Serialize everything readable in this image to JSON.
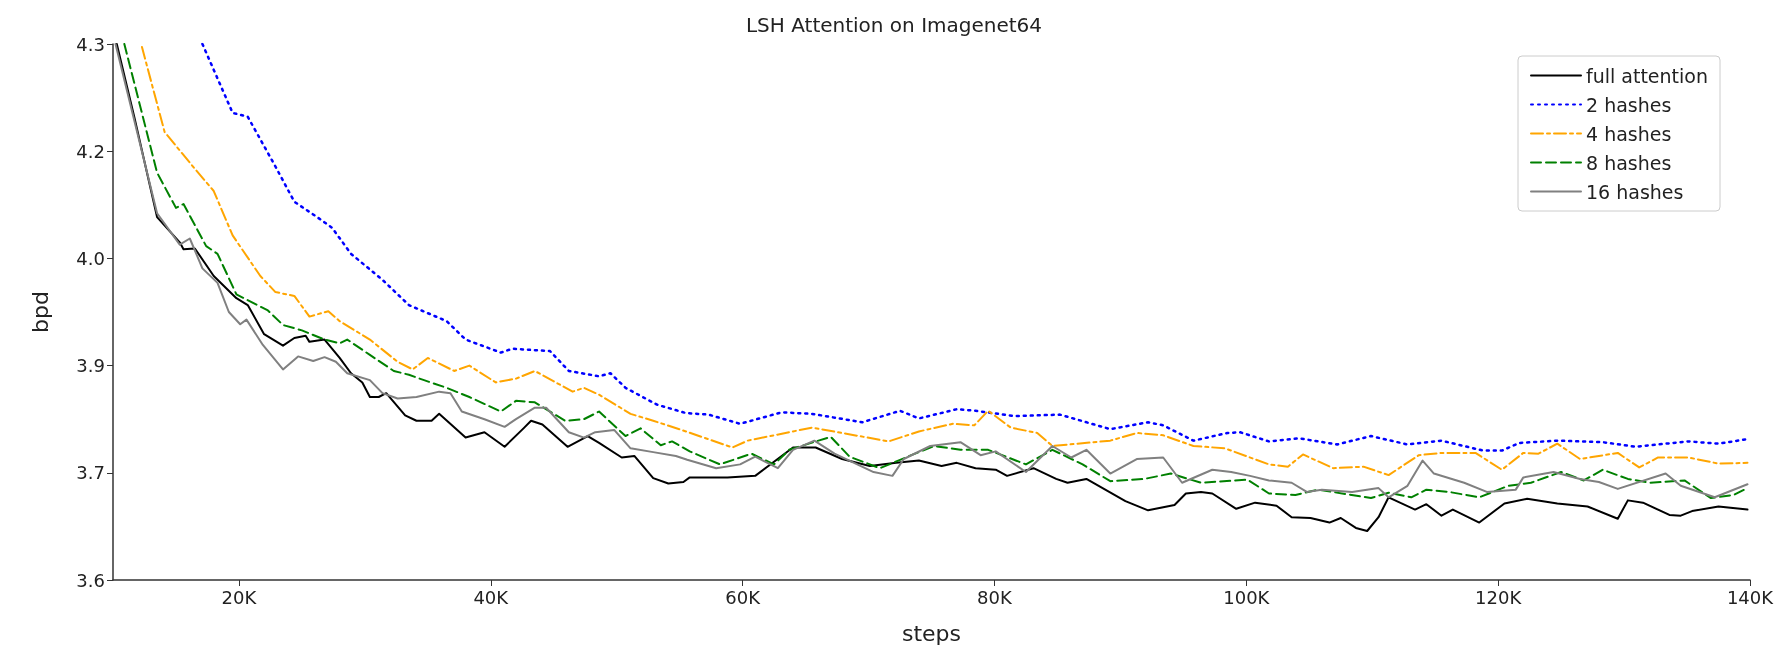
{
  "chart_data": {
    "type": "line",
    "title": "LSH Attention on Imagenet64",
    "xlabel": "steps",
    "ylabel": "bpd",
    "xlim": [
      10000,
      140000
    ],
    "xticks": [
      {
        "value": 20000,
        "label": "20K"
      },
      {
        "value": 40000,
        "label": "40K"
      },
      {
        "value": 60000,
        "label": "60K"
      },
      {
        "value": 80000,
        "label": "80K"
      },
      {
        "value": 100000,
        "label": "100K"
      },
      {
        "value": 120000,
        "label": "120K"
      },
      {
        "value": 140000,
        "label": "140K"
      }
    ],
    "ylim": [
      3.6,
      4.3
    ],
    "yticks": [
      3.6,
      {
        "value": 3.74,
        "label": "3.7"
      },
      {
        "value": 3.88,
        "label": "3.9"
      },
      {
        "value": 4.02,
        "label": "4.0"
      },
      {
        "value": 4.16,
        "label": "4.2"
      },
      4.3
    ],
    "grid": false,
    "legend": "top right",
    "marker": "none",
    "series": [
      {
        "name": "full attention",
        "color": "#000000",
        "line_style": "solid",
        "x": [
          10300,
          11700,
          13500,
          15300,
          15600,
          16500,
          18000,
          19800,
          20700,
          22000,
          23500,
          24400,
          25300,
          25600,
          26800,
          28000,
          28900,
          29800,
          30400,
          31100,
          31700,
          33200,
          34100,
          35300,
          35900,
          38000,
          39500,
          41100,
          42600,
          43200,
          44100,
          46100,
          47700,
          48600,
          50400,
          51400,
          52900,
          54100,
          55300,
          55800,
          58800,
          61000,
          64000,
          65800,
          67900,
          70100,
          72200,
          74000,
          75800,
          77000,
          78500,
          80100,
          81000,
          83100,
          84900,
          85800,
          87300,
          90400,
          92200,
          94300,
          95200,
          96400,
          97300,
          99200,
          100700,
          102400,
          103600,
          105100,
          106600,
          107500,
          108700,
          109600,
          110500,
          111300,
          113400,
          114300,
          115500,
          116400,
          118500,
          120500,
          122300,
          124700,
          127100,
          129500,
          130300,
          131500,
          133600,
          134500,
          135400,
          137500,
          139800
        ],
        "values": [
          4.3,
          4.204,
          4.074,
          4.041,
          4.032,
          4.033,
          3.997,
          3.968,
          3.959,
          3.921,
          3.906,
          3.916,
          3.919,
          3.911,
          3.914,
          3.89,
          3.87,
          3.858,
          3.839,
          3.839,
          3.844,
          3.815,
          3.808,
          3.808,
          3.817,
          3.786,
          3.793,
          3.774,
          3.798,
          3.808,
          3.803,
          3.774,
          3.788,
          3.779,
          3.76,
          3.762,
          3.733,
          3.726,
          3.728,
          3.734,
          3.734,
          3.736,
          3.773,
          3.773,
          3.758,
          3.749,
          3.753,
          3.756,
          3.749,
          3.753,
          3.746,
          3.744,
          3.736,
          3.746,
          3.732,
          3.727,
          3.732,
          3.703,
          3.691,
          3.698,
          3.713,
          3.715,
          3.713,
          3.693,
          3.701,
          3.697,
          3.682,
          3.681,
          3.675,
          3.681,
          3.668,
          3.664,
          3.682,
          3.708,
          3.692,
          3.699,
          3.684,
          3.692,
          3.675,
          3.7,
          3.706,
          3.7,
          3.696,
          3.68,
          3.704,
          3.701,
          3.685,
          3.684,
          3.69,
          3.696,
          3.692
        ]
      },
      {
        "name": "2 hashes",
        "color": "#0000ff",
        "line_style": "dotted",
        "x": [
          17100,
          19500,
          20700,
          22900,
          24400,
          26200,
          27400,
          28900,
          31400,
          33500,
          36500,
          38000,
          40800,
          41700,
          44700,
          46200,
          48600,
          49500,
          50700,
          53200,
          55500,
          57300,
          59800,
          63100,
          65500,
          69500,
          72500,
          74000,
          77000,
          78500,
          81600,
          85200,
          89200,
          92200,
          93400,
          95800,
          98500,
          99500,
          101800,
          104200,
          107200,
          109900,
          112800,
          115500,
          118800,
          120300,
          121700,
          124700,
          128300,
          130900,
          135100,
          137500,
          139800
        ],
        "values": [
          4.3,
          4.21,
          4.205,
          4.14,
          4.094,
          4.074,
          4.06,
          4.026,
          3.992,
          3.959,
          3.938,
          3.914,
          3.897,
          3.902,
          3.899,
          3.873,
          3.866,
          3.87,
          3.851,
          3.829,
          3.818,
          3.816,
          3.804,
          3.819,
          3.817,
          3.806,
          3.821,
          3.811,
          3.823,
          3.821,
          3.814,
          3.816,
          3.797,
          3.806,
          3.802,
          3.782,
          3.792,
          3.793,
          3.781,
          3.785,
          3.777,
          3.788,
          3.777,
          3.782,
          3.769,
          3.769,
          3.779,
          3.782,
          3.78,
          3.774,
          3.781,
          3.778,
          3.784
        ]
      },
      {
        "name": "4 hashes",
        "color": "#ffa500",
        "line_style": "dashdot",
        "x": [
          12300,
          14100,
          16500,
          18000,
          19500,
          21700,
          22900,
          24400,
          25600,
          27100,
          28000,
          30400,
          32600,
          33800,
          35000,
          37100,
          38300,
          40400,
          42000,
          43500,
          46500,
          47400,
          48600,
          51100,
          52900,
          55500,
          59200,
          60400,
          65500,
          67900,
          71600,
          74000,
          76700,
          78400,
          79500,
          81300,
          83400,
          84600,
          89200,
          91300,
          93400,
          95800,
          98300,
          101800,
          103300,
          104500,
          106900,
          109300,
          111300,
          113700,
          115500,
          118200,
          120300,
          122000,
          123200,
          124700,
          126500,
          129500,
          131200,
          132700,
          135100,
          137500,
          139800
        ],
        "values": [
          4.296,
          4.185,
          4.137,
          4.108,
          4.05,
          3.997,
          3.976,
          3.971,
          3.944,
          3.951,
          3.938,
          3.914,
          3.885,
          3.875,
          3.89,
          3.873,
          3.88,
          3.858,
          3.863,
          3.873,
          3.846,
          3.851,
          3.842,
          3.817,
          3.808,
          3.794,
          3.773,
          3.782,
          3.799,
          3.792,
          3.781,
          3.794,
          3.804,
          3.802,
          3.821,
          3.799,
          3.792,
          3.775,
          3.782,
          3.792,
          3.789,
          3.775,
          3.772,
          3.751,
          3.748,
          3.764,
          3.746,
          3.748,
          3.737,
          3.763,
          3.766,
          3.766,
          3.744,
          3.766,
          3.765,
          3.778,
          3.758,
          3.766,
          3.747,
          3.76,
          3.76,
          3.752,
          3.753
        ]
      },
      {
        "name": "8 hashes",
        "color": "#008000",
        "line_style": "dashed",
        "x": [
          10900,
          12000,
          13500,
          15000,
          15600,
          17400,
          18300,
          19800,
          22300,
          23500,
          25000,
          26800,
          28000,
          28600,
          30400,
          32300,
          33500,
          34700,
          36500,
          38300,
          40800,
          42000,
          43500,
          45900,
          47400,
          48600,
          50700,
          51900,
          53500,
          54400,
          55800,
          58200,
          60700,
          62500,
          63700,
          67000,
          68500,
          70900,
          73400,
          75200,
          77300,
          79500,
          82500,
          84600,
          87000,
          89200,
          91900,
          94000,
          96400,
          100100,
          101800,
          103900,
          105700,
          109900,
          111300,
          113100,
          114300,
          116100,
          118500,
          120800,
          122600,
          125000,
          126800,
          128300,
          130300,
          132100,
          134800,
          136900,
          138700,
          139800
        ],
        "values": [
          4.3,
          4.229,
          4.132,
          4.086,
          4.091,
          4.036,
          4.026,
          3.973,
          3.952,
          3.933,
          3.926,
          3.914,
          3.909,
          3.914,
          3.894,
          3.873,
          3.868,
          3.861,
          3.851,
          3.839,
          3.82,
          3.834,
          3.832,
          3.808,
          3.81,
          3.82,
          3.788,
          3.798,
          3.776,
          3.781,
          3.768,
          3.751,
          3.765,
          3.751,
          3.77,
          3.787,
          3.761,
          3.746,
          3.763,
          3.775,
          3.77,
          3.77,
          3.751,
          3.77,
          3.751,
          3.729,
          3.732,
          3.739,
          3.727,
          3.731,
          3.713,
          3.711,
          3.718,
          3.707,
          3.714,
          3.708,
          3.718,
          3.715,
          3.708,
          3.723,
          3.727,
          3.741,
          3.73,
          3.744,
          3.732,
          3.727,
          3.73,
          3.707,
          3.711,
          3.72
        ]
      },
      {
        "name": "16 hashes",
        "color": "#808080",
        "line_style": "solid",
        "x": [
          10200,
          13500,
          15300,
          16100,
          17100,
          18300,
          19200,
          20100,
          20600,
          21900,
          23500,
          24700,
          25900,
          26800,
          27700,
          28600,
          30400,
          31400,
          32600,
          34100,
          35900,
          36800,
          37700,
          39500,
          41100,
          42000,
          43500,
          44400,
          46200,
          47400,
          48300,
          49800,
          51100,
          52900,
          54700,
          55600,
          57900,
          59800,
          61000,
          62800,
          64000,
          65700,
          67300,
          70400,
          71900,
          72800,
          74900,
          77300,
          78900,
          80100,
          82500,
          84600,
          86100,
          87300,
          89200,
          91300,
          93400,
          94900,
          97300,
          98800,
          100300,
          101800,
          103600,
          104800,
          106000,
          108400,
          110500,
          111300,
          112800,
          114000,
          114900,
          117300,
          119100,
          121400,
          122000,
          124400,
          126500,
          128000,
          129500,
          133300,
          134500,
          137200,
          139800
        ],
        "values": [
          4.3,
          4.079,
          4.038,
          4.046,
          4.007,
          3.988,
          3.95,
          3.934,
          3.94,
          3.907,
          3.875,
          3.892,
          3.886,
          3.891,
          3.885,
          3.87,
          3.861,
          3.844,
          3.837,
          3.839,
          3.846,
          3.844,
          3.82,
          3.81,
          3.8,
          3.81,
          3.825,
          3.825,
          3.793,
          3.786,
          3.793,
          3.796,
          3.772,
          3.767,
          3.762,
          3.757,
          3.746,
          3.751,
          3.761,
          3.746,
          3.77,
          3.782,
          3.765,
          3.741,
          3.736,
          3.758,
          3.775,
          3.78,
          3.763,
          3.768,
          3.741,
          3.775,
          3.76,
          3.77,
          3.739,
          3.758,
          3.76,
          3.727,
          3.744,
          3.741,
          3.736,
          3.73,
          3.727,
          3.715,
          3.718,
          3.715,
          3.72,
          3.708,
          3.723,
          3.756,
          3.739,
          3.727,
          3.715,
          3.718,
          3.734,
          3.741,
          3.732,
          3.728,
          3.719,
          3.739,
          3.723,
          3.708,
          3.725
        ]
      }
    ]
  }
}
